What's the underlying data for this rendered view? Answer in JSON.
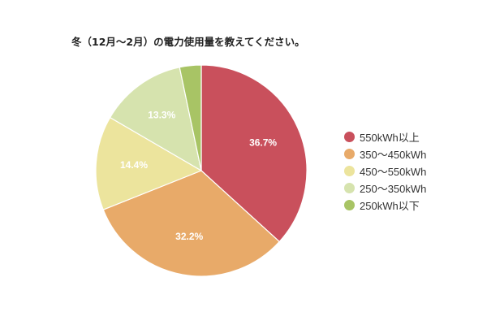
{
  "chart_data": {
    "type": "pie",
    "title": "冬（12月～2月）の電力使用量を教えてください。",
    "categories": [
      "550kWh以上",
      "350～450kWh",
      "450～550kWh",
      "250～350kWh",
      "250kWh以下"
    ],
    "values": [
      36.7,
      32.2,
      14.4,
      13.3,
      3.3
    ],
    "data_labels": [
      "36.7%",
      "32.2%",
      "14.4%",
      "13.3%",
      ""
    ],
    "colors": [
      "#c9505c",
      "#e8aa69",
      "#ece49d",
      "#d6e3ae",
      "#a8c465"
    ],
    "legend_position": "right",
    "start_angle": "12 o'clock, clockwise"
  }
}
